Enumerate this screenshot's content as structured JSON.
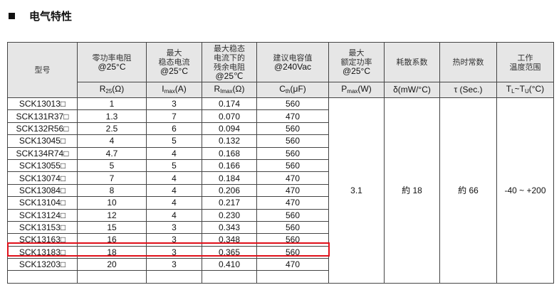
{
  "section_title": "电气特性",
  "headers": [
    {
      "label": "型号"
    },
    {
      "label": "零功率电阻",
      "cond": "@25°C",
      "unit": "R25(Ω)"
    },
    {
      "label": "最大\n稳态电流",
      "cond": "@25°C",
      "unit": "Imax(A)"
    },
    {
      "label": "最大稳态\n电流下的\n残余电阻",
      "cond": "@25℃",
      "unit": "RImax(Ω)"
    },
    {
      "label": "建议电容值",
      "cond": "@240Vac",
      "unit": "Cth(μF)"
    },
    {
      "label": "最大\n额定功率",
      "cond": "@25°C",
      "unit": "Pmax(W)"
    },
    {
      "label": "耗散系数",
      "unit": "δ(mW/°C)"
    },
    {
      "label": "热时常数",
      "unit": "τ (Sec.)"
    },
    {
      "label": "工作\n温度范围",
      "unit": "TL~TU(°C)"
    }
  ],
  "rows": [
    [
      "SCK13013□",
      "1",
      "3",
      "0.174",
      "560"
    ],
    [
      "SCK131R37□",
      "1.3",
      "7",
      "0.070",
      "470"
    ],
    [
      "SCK132R56□",
      "2.5",
      "6",
      "0.094",
      "560"
    ],
    [
      "SCK13045□",
      "4",
      "5",
      "0.132",
      "560"
    ],
    [
      "SCK134R74□",
      "4.7",
      "4",
      "0.168",
      "560"
    ],
    [
      "SCK13055□",
      "5",
      "5",
      "0.166",
      "560"
    ],
    [
      "SCK13074□",
      "7",
      "4",
      "0.184",
      "470"
    ],
    [
      "SCK13084□",
      "8",
      "4",
      "0.206",
      "470"
    ],
    [
      "SCK13104□",
      "10",
      "4",
      "0.217",
      "470"
    ],
    [
      "SCK13124□",
      "12",
      "4",
      "0.230",
      "560"
    ],
    [
      "SCK13153□",
      "15",
      "3",
      "0.343",
      "560"
    ],
    [
      "SCK13163□",
      "16",
      "3",
      "0.348",
      "560"
    ],
    [
      "SCK13183□",
      "18",
      "3",
      "0.365",
      "560"
    ],
    [
      "SCK13203□",
      "20",
      "3",
      "0.410",
      "470"
    ]
  ],
  "shared": {
    "pmax": "3.1",
    "delta": "約 18",
    "tau": "約 66",
    "temp": "-40 ~ +200"
  },
  "highlighted_row": "SCK13163□",
  "highlight_color": "#e0101a"
}
